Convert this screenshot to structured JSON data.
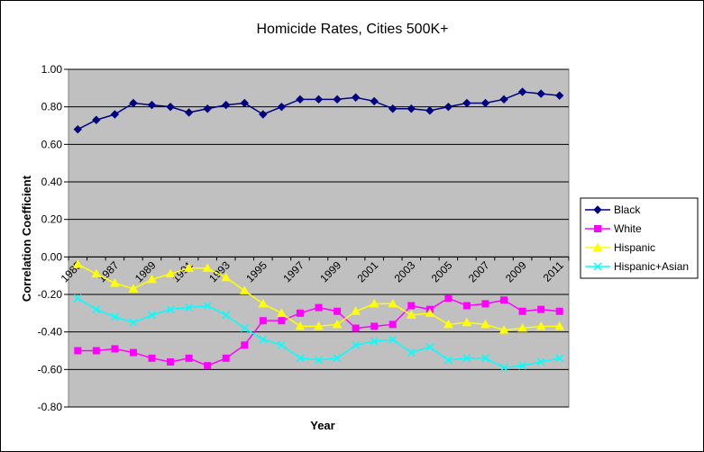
{
  "chart_data": {
    "type": "line",
    "title": "Homicide Rates, Cities 500K+",
    "xlabel": "Year",
    "ylabel": "Correlation Coefficient",
    "ylim": [
      -0.8,
      1.0
    ],
    "y_ticks": [
      "1.00",
      "0.80",
      "0.60",
      "0.40",
      "0.20",
      "0.00",
      "-0.20",
      "-0.40",
      "-0.60",
      "-0.80"
    ],
    "x": [
      1985,
      1986,
      1987,
      1988,
      1989,
      1990,
      1991,
      1992,
      1993,
      1994,
      1995,
      1996,
      1997,
      1998,
      1999,
      2000,
      2001,
      2002,
      2003,
      2004,
      2005,
      2006,
      2007,
      2008,
      2009,
      2010,
      2011
    ],
    "x_tick_labels": [
      "1985",
      "1987",
      "1989",
      "1991",
      "1993",
      "1995",
      "1997",
      "1999",
      "2001",
      "2003",
      "2005",
      "2007",
      "2009",
      "2011"
    ],
    "grid": true,
    "legend_position": "right",
    "plot_background": "#C0C0C0",
    "series": [
      {
        "name": "Black",
        "color": "#000080",
        "marker": "diamond",
        "values": [
          0.68,
          0.73,
          0.76,
          0.82,
          0.81,
          0.8,
          0.77,
          0.79,
          0.81,
          0.82,
          0.76,
          0.8,
          0.84,
          0.84,
          0.84,
          0.85,
          0.83,
          0.79,
          0.79,
          0.78,
          0.8,
          0.82,
          0.82,
          0.84,
          0.88,
          0.87,
          0.86
        ]
      },
      {
        "name": "White",
        "color": "#FF00FF",
        "marker": "square",
        "values": [
          -0.5,
          -0.5,
          -0.49,
          -0.51,
          -0.54,
          -0.56,
          -0.54,
          -0.58,
          -0.54,
          -0.47,
          -0.34,
          -0.34,
          -0.3,
          -0.27,
          -0.29,
          -0.38,
          -0.37,
          -0.36,
          -0.26,
          -0.28,
          -0.22,
          -0.26,
          -0.25,
          -0.23,
          -0.29,
          -0.28,
          -0.29
        ]
      },
      {
        "name": "Hispanic",
        "color": "#FFFF00",
        "marker": "triangle",
        "values": [
          -0.04,
          -0.09,
          -0.14,
          -0.17,
          -0.12,
          -0.09,
          -0.06,
          -0.06,
          -0.11,
          -0.18,
          -0.25,
          -0.3,
          -0.37,
          -0.37,
          -0.36,
          -0.29,
          -0.25,
          -0.25,
          -0.31,
          -0.3,
          -0.36,
          -0.35,
          -0.36,
          -0.39,
          -0.38,
          -0.37,
          -0.37
        ]
      },
      {
        "name": "Hispanic+Asian",
        "color": "#00FFFF",
        "marker": "x",
        "values": [
          -0.22,
          -0.28,
          -0.32,
          -0.35,
          -0.31,
          -0.28,
          -0.27,
          -0.26,
          -0.31,
          -0.38,
          -0.44,
          -0.47,
          -0.54,
          -0.55,
          -0.54,
          -0.47,
          -0.45,
          -0.44,
          -0.51,
          -0.48,
          -0.55,
          -0.54,
          -0.54,
          -0.59,
          -0.58,
          -0.56,
          -0.54
        ]
      }
    ]
  }
}
